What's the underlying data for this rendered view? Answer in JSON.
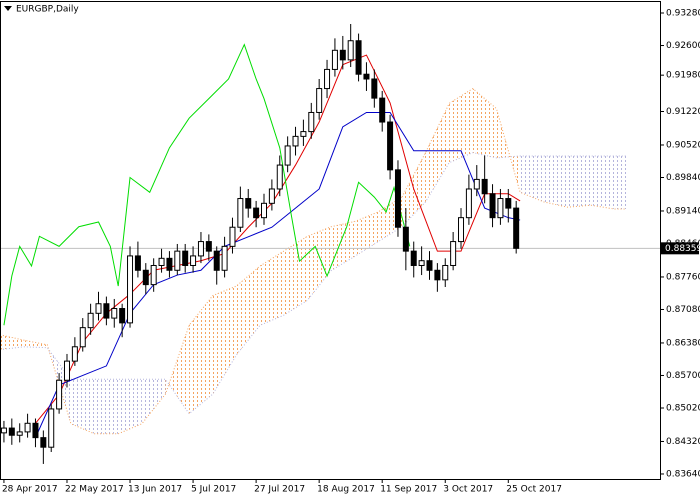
{
  "chart_data": {
    "type": "candlestick",
    "title": "EURGBP,Daily",
    "x": [
      0,
      2,
      4,
      6,
      8,
      10,
      12,
      14,
      16,
      18,
      20,
      22,
      24,
      26,
      28,
      30,
      32,
      34,
      36,
      38,
      40,
      42,
      44,
      46,
      48,
      50,
      52,
      54,
      56,
      58,
      60,
      62,
      64,
      66,
      68,
      70,
      72,
      74,
      76,
      78,
      80,
      82,
      84,
      86,
      88,
      90,
      92,
      94,
      96,
      98,
      100,
      102,
      104,
      106,
      108,
      110,
      112,
      114,
      116,
      118,
      120,
      122,
      124,
      126,
      128,
      130
    ],
    "open": [
      0.845,
      0.846,
      0.8445,
      0.8452,
      0.847,
      0.844,
      0.842,
      0.85,
      0.856,
      0.86,
      0.863,
      0.867,
      0.87,
      0.872,
      0.869,
      0.871,
      0.868,
      0.882,
      0.879,
      0.876,
      0.88,
      0.8815,
      0.879,
      0.883,
      0.88,
      0.882,
      0.885,
      0.883,
      0.879,
      0.884,
      0.888,
      0.894,
      0.892,
      0.89,
      0.893,
      0.896,
      0.901,
      0.905,
      0.907,
      0.908,
      0.912,
      0.917,
      0.921,
      0.925,
      0.923,
      0.927,
      0.92,
      0.919,
      0.915,
      0.91,
      0.9,
      0.888,
      0.883,
      0.88,
      0.881,
      0.879,
      0.877,
      0.88,
      0.885,
      0.89,
      0.896,
      0.898,
      0.895,
      0.89,
      0.894,
      0.892
    ],
    "high": [
      0.8475,
      0.848,
      0.847,
      0.849,
      0.848,
      0.8455,
      0.851,
      0.8575,
      0.8615,
      0.865,
      0.869,
      0.872,
      0.8745,
      0.8735,
      0.873,
      0.872,
      0.884,
      0.885,
      0.8805,
      0.8815,
      0.8835,
      0.883,
      0.8845,
      0.8845,
      0.884,
      0.887,
      0.8865,
      0.884,
      0.886,
      0.89,
      0.8965,
      0.896,
      0.8935,
      0.895,
      0.898,
      0.903,
      0.907,
      0.909,
      0.9105,
      0.914,
      0.919,
      0.923,
      0.9275,
      0.928,
      0.9305,
      0.9285,
      0.9225,
      0.921,
      0.9165,
      0.9115,
      0.902,
      0.892,
      0.885,
      0.884,
      0.883,
      0.8805,
      0.8815,
      0.887,
      0.892,
      0.899,
      0.901,
      0.903,
      0.897,
      0.896,
      0.896,
      0.8935
    ],
    "low": [
      0.843,
      0.8425,
      0.843,
      0.844,
      0.842,
      0.8385,
      0.841,
      0.849,
      0.8545,
      0.859,
      0.862,
      0.8655,
      0.8685,
      0.8675,
      0.867,
      0.865,
      0.867,
      0.8775,
      0.874,
      0.8745,
      0.8785,
      0.8775,
      0.878,
      0.8785,
      0.8785,
      0.8805,
      0.881,
      0.876,
      0.8775,
      0.8825,
      0.887,
      0.89,
      0.888,
      0.8885,
      0.8915,
      0.8945,
      0.8995,
      0.903,
      0.905,
      0.9065,
      0.9105,
      0.915,
      0.9195,
      0.921,
      0.9215,
      0.9185,
      0.9165,
      0.913,
      0.908,
      0.898,
      0.886,
      0.879,
      0.8775,
      0.878,
      0.877,
      0.8745,
      0.8755,
      0.879,
      0.8835,
      0.8885,
      0.8945,
      0.893,
      0.888,
      0.8885,
      0.889,
      0.8825
    ],
    "close": [
      0.846,
      0.8445,
      0.8452,
      0.847,
      0.844,
      0.842,
      0.85,
      0.856,
      0.86,
      0.863,
      0.867,
      0.87,
      0.872,
      0.869,
      0.871,
      0.868,
      0.882,
      0.879,
      0.876,
      0.88,
      0.8815,
      0.879,
      0.883,
      0.88,
      0.882,
      0.885,
      0.883,
      0.879,
      0.884,
      0.888,
      0.894,
      0.892,
      0.89,
      0.893,
      0.896,
      0.901,
      0.905,
      0.907,
      0.908,
      0.912,
      0.917,
      0.921,
      0.925,
      0.923,
      0.927,
      0.92,
      0.919,
      0.915,
      0.91,
      0.9,
      0.888,
      0.883,
      0.88,
      0.881,
      0.879,
      0.877,
      0.88,
      0.885,
      0.89,
      0.896,
      0.898,
      0.895,
      0.89,
      0.894,
      0.892,
      0.88359
    ],
    "up_color": "#ffffff",
    "down_color": "#000000",
    "lines": [
      {
        "color": "#e00000",
        "x": [
          8,
          14,
          20,
          26,
          32,
          38,
          44,
          50,
          56,
          62,
          68,
          74,
          80,
          86,
          92,
          98,
          104,
          110,
          116,
          122,
          128,
          131
        ],
        "values": [
          0.847,
          0.853,
          0.864,
          0.87,
          0.874,
          0.879,
          0.88,
          0.881,
          0.8825,
          0.888,
          0.893,
          0.901,
          0.91,
          0.922,
          0.924,
          0.914,
          0.896,
          0.883,
          0.883,
          0.895,
          0.895,
          0.8935
        ]
      },
      {
        "color": "#0000c8",
        "x": [
          8,
          14,
          20,
          26,
          32,
          38,
          44,
          50,
          56,
          62,
          68,
          74,
          80,
          86,
          92,
          98,
          104,
          110,
          116,
          122,
          128,
          131
        ],
        "values": [
          0.844,
          0.855,
          0.857,
          0.859,
          0.87,
          0.876,
          0.878,
          0.879,
          0.884,
          0.886,
          0.888,
          0.892,
          0.896,
          0.909,
          0.912,
          0.912,
          0.904,
          0.904,
          0.904,
          0.892,
          0.89,
          0.8895
        ]
      },
      {
        "color": "#00dd00",
        "x": [
          0,
          2,
          4,
          7,
          9,
          14,
          19,
          24,
          27,
          29,
          32,
          37,
          42,
          47,
          52,
          57,
          61,
          64,
          66,
          70,
          73,
          75,
          79,
          82,
          87,
          90,
          94,
          97,
          99,
          103
        ],
        "values": [
          0.8675,
          0.8778,
          0.884,
          0.8799,
          0.8861,
          0.884,
          0.8881,
          0.8891,
          0.884,
          0.8757,
          0.8984,
          0.8953,
          0.9046,
          0.9108,
          0.9149,
          0.919,
          0.9262,
          0.919,
          0.9149,
          0.9046,
          0.8902,
          0.8809,
          0.884,
          0.8778,
          0.8881,
          0.8974,
          0.8943,
          0.8912,
          0.8963,
          0.884
        ]
      }
    ],
    "cloud": {
      "x": [
        -1,
        5,
        11,
        17,
        23,
        29,
        35,
        41,
        47,
        53,
        59,
        65,
        71,
        77,
        83,
        89,
        95,
        101,
        107,
        113,
        119,
        125,
        131,
        137,
        143,
        149,
        155,
        158
      ],
      "span_a": [
        0.8655,
        0.8644,
        0.8634,
        0.8469,
        0.8448,
        0.8448,
        0.8469,
        0.8531,
        0.8675,
        0.8737,
        0.8757,
        0.8799,
        0.883,
        0.8861,
        0.8881,
        0.8892,
        0.8912,
        0.8943,
        0.9036,
        0.9139,
        0.917,
        0.9128,
        0.8953,
        0.8933,
        0.8922,
        0.8926,
        0.8918,
        0.8918
      ],
      "span_b": [
        0.8624,
        0.863,
        0.8628,
        0.8562,
        0.8562,
        0.8562,
        0.8562,
        0.8562,
        0.849,
        0.8531,
        0.8613,
        0.8675,
        0.8696,
        0.8727,
        0.8789,
        0.8819,
        0.885,
        0.8881,
        0.8933,
        0.9015,
        0.9036,
        0.9025,
        0.9029,
        0.9029,
        0.9029,
        0.9029,
        0.9029,
        0.9029
      ],
      "span_a_color": "#f4a460",
      "span_b_color": "#b4b4dc"
    },
    "last_price": 0.88359,
    "xlim": [
      -1,
      166.5
    ],
    "ylim": [
      0.83535,
      0.93531
    ],
    "xticks": [
      {
        "value": 0,
        "label": "28 Apr 2017"
      },
      {
        "value": 16,
        "label": "22 May 2017"
      },
      {
        "value": 32,
        "label": "13 Jun 2017"
      },
      {
        "value": 48,
        "label": "5 Jul 2017"
      },
      {
        "value": 64,
        "label": "27 Jul 2017"
      },
      {
        "value": 80,
        "label": "18 Aug 2017"
      },
      {
        "value": 96,
        "label": "11 Sep 2017"
      },
      {
        "value": 112,
        "label": "3 Oct 2017"
      },
      {
        "value": 128,
        "label": "25 Oct 2017"
      }
    ],
    "yticks": [
      {
        "value": 0.9328,
        "label": "0.93280"
      },
      {
        "value": 0.926,
        "label": "0.92600"
      },
      {
        "value": 0.9198,
        "label": "0.91980"
      },
      {
        "value": 0.9122,
        "label": "0.91220"
      },
      {
        "value": 0.9052,
        "label": "0.90520"
      },
      {
        "value": 0.8984,
        "label": "0.89840"
      },
      {
        "value": 0.8914,
        "label": "0.89140"
      },
      {
        "value": 0.8846,
        "label": "0.88460"
      },
      {
        "value": 0.8776,
        "label": "0.87760"
      },
      {
        "value": 0.8708,
        "label": "0.87080"
      },
      {
        "value": 0.8638,
        "label": "0.86380"
      },
      {
        "value": 0.857,
        "label": "0.85700"
      },
      {
        "value": 0.8502,
        "label": "0.85020"
      },
      {
        "value": 0.8432,
        "label": "0.84320"
      },
      {
        "value": 0.8364,
        "label": "0.83640"
      }
    ]
  }
}
